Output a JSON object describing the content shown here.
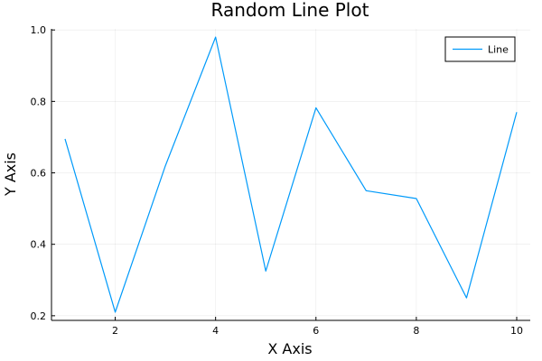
{
  "chart_data": {
    "type": "line",
    "title": "Random Line Plot",
    "xlabel": "X Axis",
    "ylabel": "Y Axis",
    "x": [
      1,
      2,
      3,
      4,
      5,
      6,
      7,
      8,
      9,
      10
    ],
    "series": [
      {
        "name": "Line",
        "color": "#009AFA",
        "values": [
          0.695,
          0.21,
          0.62,
          0.98,
          0.325,
          0.782,
          0.55,
          0.528,
          0.25,
          0.77
        ]
      }
    ],
    "xlim": [
      0.73,
      10.27
    ],
    "ylim": [
      0.187,
      1.003
    ],
    "xticks": [
      2,
      4,
      6,
      8,
      10
    ],
    "yticks": [
      0.2,
      0.4,
      0.6,
      0.8,
      1.0
    ],
    "xtick_labels": [
      "2",
      "4",
      "6",
      "8",
      "10"
    ],
    "ytick_labels": [
      "0.2",
      "0.4",
      "0.6",
      "0.8",
      "1.0"
    ],
    "grid": true,
    "legend_position": "top-right"
  }
}
